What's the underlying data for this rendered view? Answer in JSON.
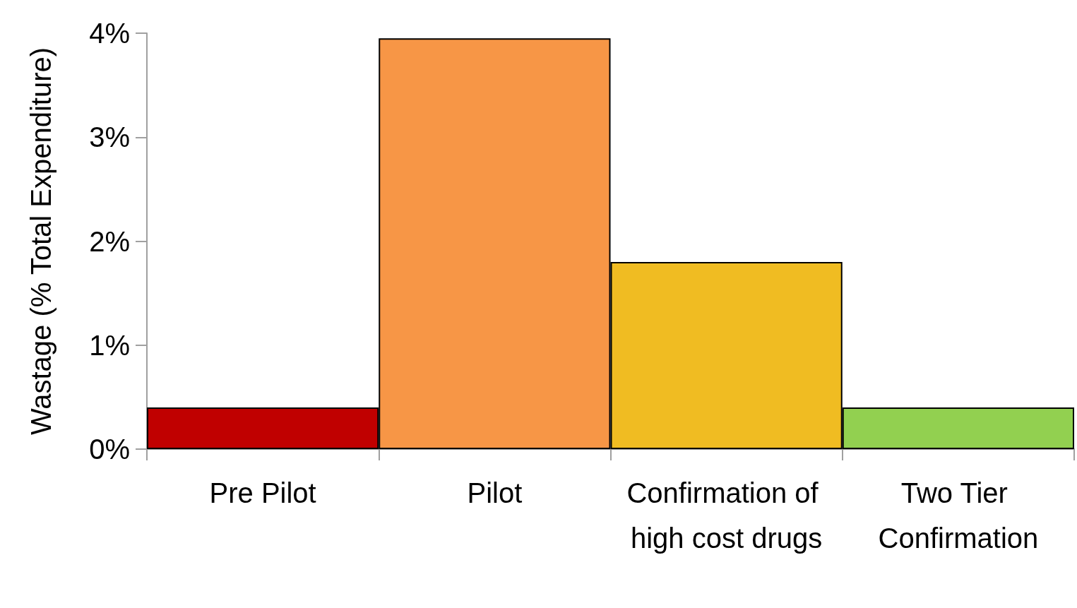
{
  "chart_data": {
    "type": "bar",
    "ylabel": "Wastage (% Total Expenditure)",
    "categories": [
      "Pre Pilot",
      "Pilot",
      "Confirmation of high cost drugs",
      "Two Tier Confirmation"
    ],
    "values": [
      0.4,
      3.95,
      1.8,
      0.4
    ],
    "colors": [
      "#c00000",
      "#f79646",
      "#f0bc22",
      "#92d050"
    ],
    "ylim": [
      0,
      4
    ],
    "yticks": [
      {
        "value": 0,
        "label": "0%"
      },
      {
        "value": 1,
        "label": "1%"
      },
      {
        "value": 2,
        "label": "2%"
      },
      {
        "value": 3,
        "label": "3%"
      },
      {
        "value": 4,
        "label": "4%"
      }
    ],
    "grid": false
  }
}
